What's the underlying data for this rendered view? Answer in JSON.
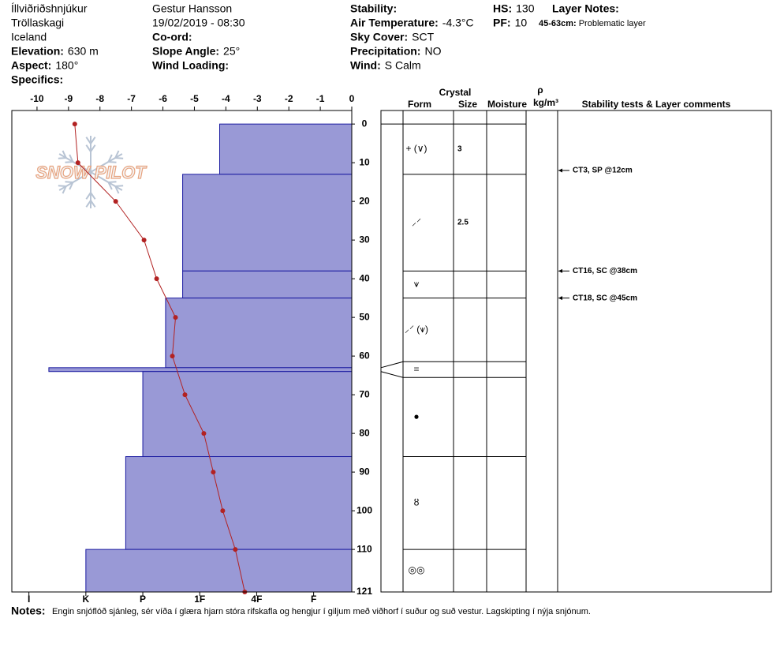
{
  "header": {
    "site": "Íllviðriðshnjúkur",
    "range": "Tröllaskagi",
    "country": "Iceland",
    "observer": "Gestur Hansson",
    "datetime": "19/02/2019 - 08:30",
    "fields": [
      {
        "label": "Elevation:",
        "value": "630 m"
      },
      {
        "label": "Aspect:",
        "value": "180°"
      },
      {
        "label": "Specifics:"
      },
      {
        "label": "Co-ord:"
      },
      {
        "label": "Slope Angle:",
        "value": "25°"
      },
      {
        "label": "Wind Loading:"
      },
      {
        "label": "Stability:"
      },
      {
        "label": "Air Temperature:",
        "value": "-4.3°C"
      },
      {
        "label": "Sky Cover:",
        "value": "SCT"
      },
      {
        "label": "Precipitation:",
        "value": "NO"
      },
      {
        "label": "Wind:",
        "value": "S  Calm"
      },
      {
        "label": "HS:",
        "value": "130"
      },
      {
        "label": "PF:",
        "value": "10"
      },
      {
        "label": "Layer Notes:"
      }
    ],
    "layer_note": {
      "label": "45-63cm:",
      "value": "Problematic layer"
    }
  },
  "logo": "SNOW PILOT",
  "chart_data": [
    {
      "type": "line",
      "depths": [
        0,
        10,
        20,
        30,
        40,
        50,
        60,
        70,
        80,
        90,
        100,
        110,
        121
      ],
      "values": [
        -8.8,
        -8.7,
        -7.5,
        -6.6,
        -6.2,
        -5.6,
        -5.7,
        -5.3,
        -4.7,
        -4.4,
        -4.1,
        -3.7,
        -3.4
      ],
      "color": "#b22222",
      "xlim": [
        -10.8,
        0
      ],
      "xticks": [
        -10,
        -9,
        -8,
        -7,
        -6,
        -5,
        -4,
        -3,
        -2,
        -1,
        0
      ],
      "ylim": [
        -3.5,
        121
      ],
      "yticks": [
        0,
        10,
        20,
        30,
        40,
        50,
        60,
        70,
        80,
        90,
        100,
        110,
        121
      ]
    },
    {
      "type": "bar",
      "tops": [
        0,
        13,
        38,
        45,
        63,
        64,
        86,
        110
      ],
      "bottoms": [
        13,
        38,
        45,
        63,
        64,
        86,
        110,
        121
      ],
      "values": [
        2.65,
        3.3,
        3.3,
        3.6,
        5.65,
        4,
        4.3,
        5
      ],
      "color": "#9999d6",
      "xlim": [
        6.3,
        0.33
      ],
      "xticks": [
        {
          "value": 6,
          "label": "I"
        },
        {
          "value": 5,
          "label": "K"
        },
        {
          "value": 4,
          "label": "P"
        },
        {
          "value": 3,
          "label": "1F"
        },
        {
          "value": 2,
          "label": "4F"
        },
        {
          "value": 1,
          "label": "F"
        }
      ],
      "ylim": [
        -3.5,
        121
      ]
    }
  ],
  "table": {
    "headers": {
      "crystal": "Crystal",
      "form": "Form",
      "size": "Size",
      "moisture": "Moisture",
      "rho": "ρ",
      "density": "kg/m³",
      "comments": "Stability tests & Layer comments"
    },
    "layers": [
      {
        "form": "+ (∨)",
        "size": "3"
      },
      {
        "form": "⸝⸍",
        "size": "2.5"
      },
      {
        "form": "⩛"
      },
      {
        "form": "⸝⸍ (⩛)"
      },
      {
        "form": "="
      },
      {
        "form": "●"
      },
      {
        "form": "ȣ"
      },
      {
        "form": "◎◎"
      }
    ],
    "tests": [
      {
        "depth": 12,
        "text": "CT3, SP @12cm"
      },
      {
        "depth": 38,
        "text": "CT16, SC @38cm"
      },
      {
        "depth": 45,
        "text": "CT18, SC @45cm"
      }
    ]
  },
  "notes": {
    "label": "Notes:",
    "text": "Engin snjóflóð sjánleg, sér víða í glæra hjarn stóra rifskafla og hengjur í giljum með viðhorf í suður og suð vestur. Lagskipting í nýja snjónum."
  }
}
